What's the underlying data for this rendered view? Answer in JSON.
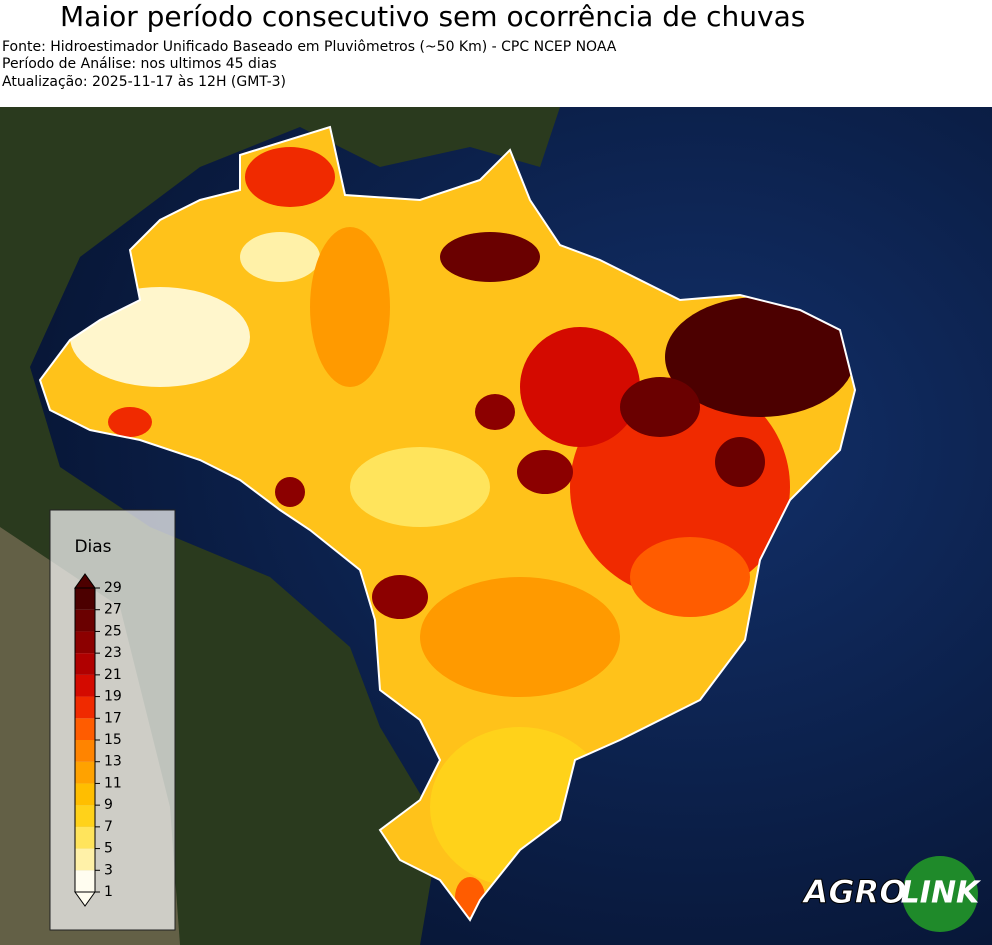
{
  "header": {
    "title": "Maior período consecutivo sem ocorrência de chuvas",
    "lines": [
      "Fonte: Hidroestimador Unificado Baseado em Pluviômetros (~50 Km) - CPC NCEP NOAA",
      "Período de Análise: nos ultimos 45 dias",
      "Atualização: 2025-11-17 às 12H (GMT-3)"
    ]
  },
  "colorbar": {
    "title": "Dias",
    "ticks": [
      1,
      3,
      5,
      7,
      9,
      11,
      13,
      15,
      17,
      19,
      21,
      23,
      25,
      27,
      29
    ],
    "colors": [
      "#fffdf0",
      "#fff1a8",
      "#ffe45c",
      "#ffd21a",
      "#ffbe00",
      "#ffa200",
      "#ff8400",
      "#ff5c00",
      "#f02a00",
      "#d40a00",
      "#b00000",
      "#8c0000",
      "#6a0000",
      "#4c0000"
    ]
  },
  "logo": {
    "left": "AGRO",
    "right": "LINK"
  }
}
